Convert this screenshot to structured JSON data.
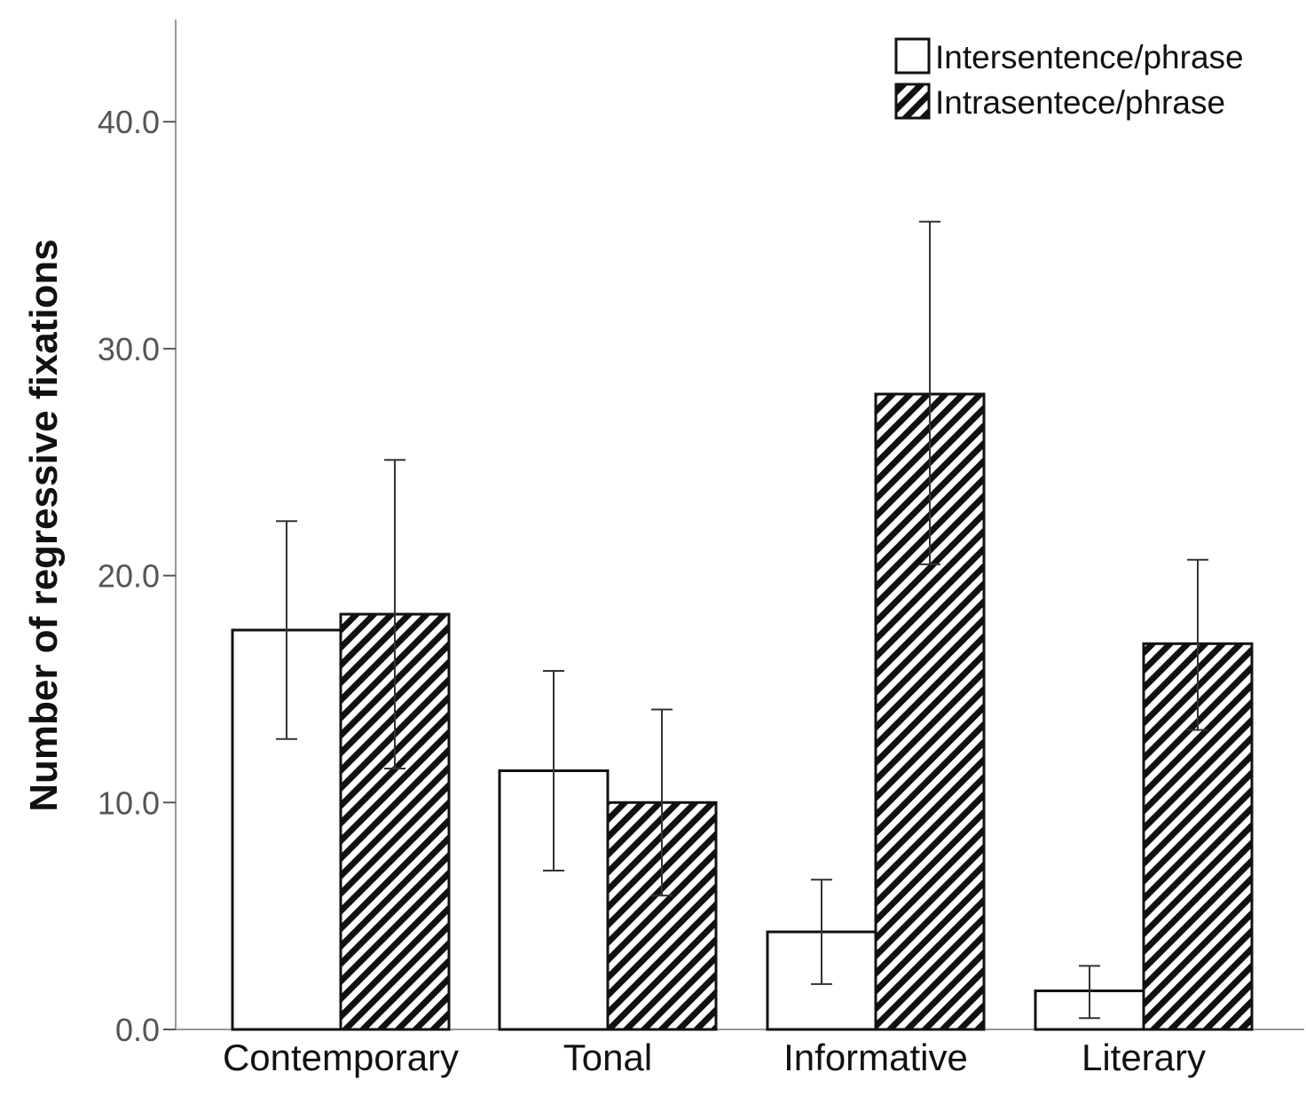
{
  "chart_data": {
    "type": "bar",
    "title": "",
    "xlabel": "",
    "ylabel": "Number of regressive fixations",
    "ylim": [
      0,
      44
    ],
    "yticks": [
      "0.0",
      "10.0",
      "20.0",
      "30.0",
      "40.0"
    ],
    "categories": [
      "Contemporary",
      "Tonal",
      "Informative",
      "Literary"
    ],
    "series": [
      {
        "name": "Intersentence/phrase",
        "fill": "plain",
        "values": [
          17.6,
          11.4,
          4.3,
          1.7
        ],
        "err_low": [
          12.8,
          7.0,
          2.0,
          0.5
        ],
        "err_high": [
          22.4,
          15.8,
          6.6,
          2.8
        ]
      },
      {
        "name": "Intrasentece/phrase",
        "fill": "hatched",
        "values": [
          18.3,
          10.0,
          28.0,
          17.0
        ],
        "err_low": [
          11.5,
          5.9,
          20.5,
          13.2
        ],
        "err_high": [
          25.1,
          14.1,
          35.6,
          20.7
        ]
      }
    ],
    "legend_position": "top-right",
    "grid": false
  },
  "colors": {
    "bar_stroke": "#111111",
    "axis": "#999999",
    "plain_fill": "#ffffff",
    "hatch_dark": "#111111"
  }
}
